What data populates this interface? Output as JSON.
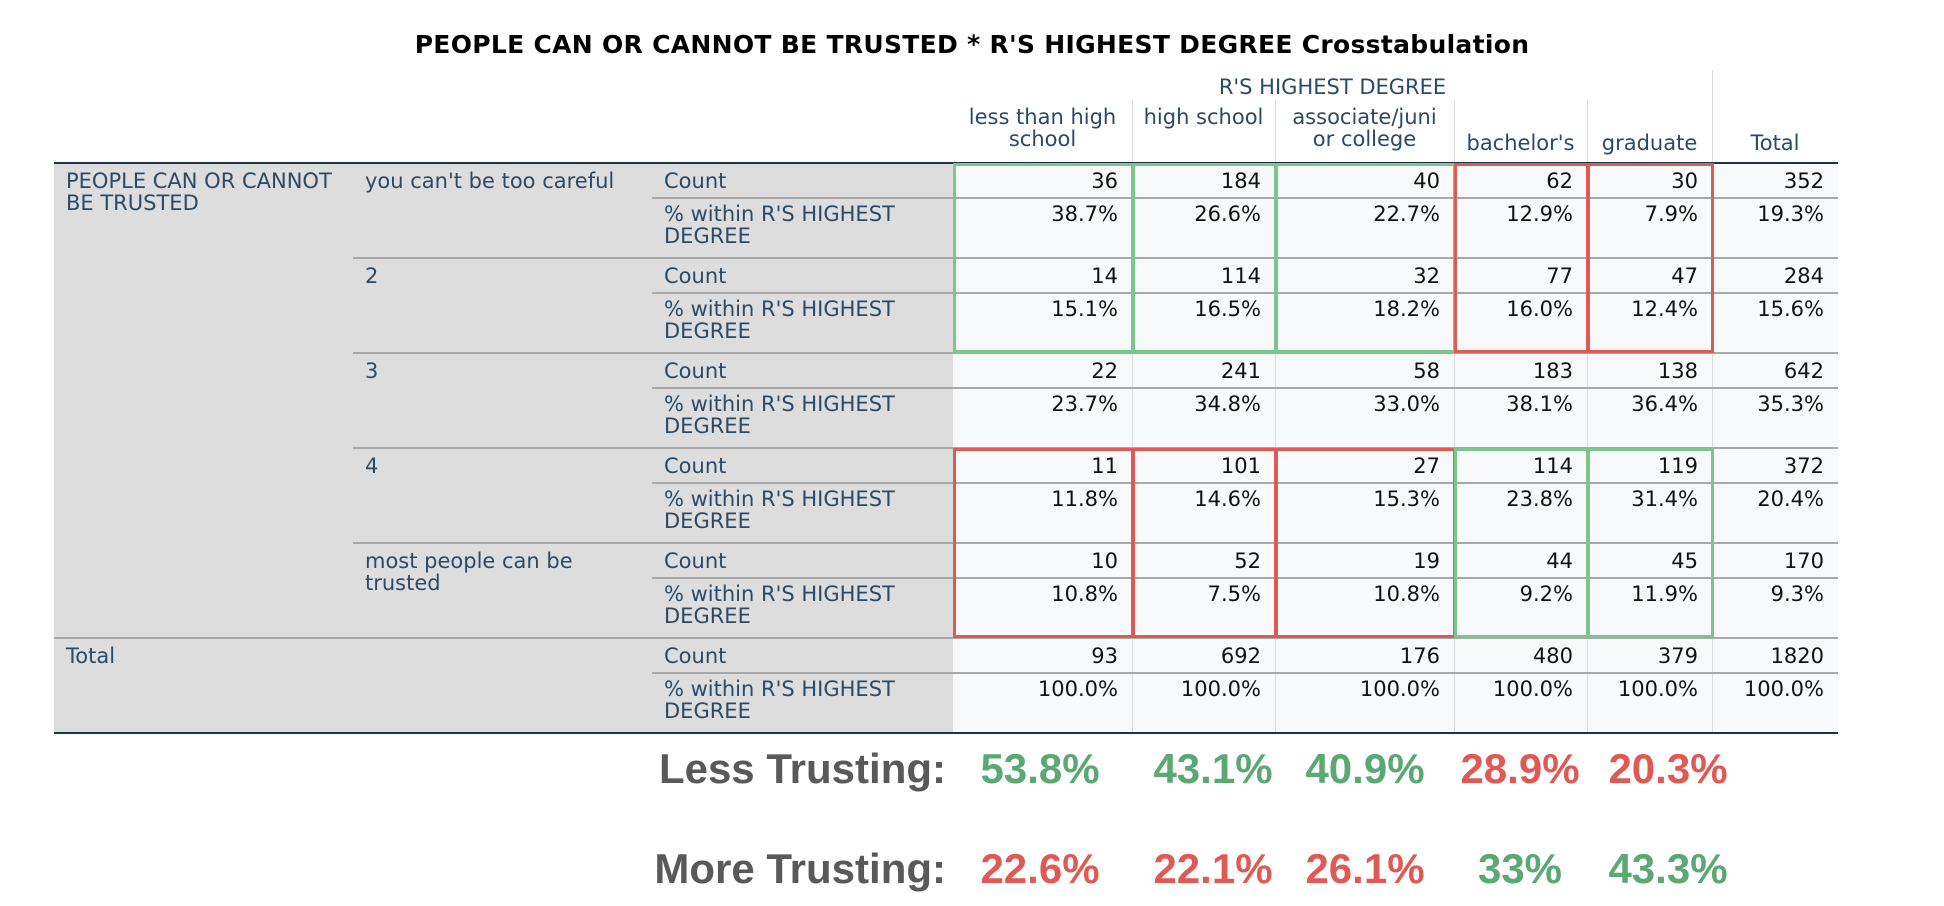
{
  "title": "PEOPLE CAN OR CANNOT BE TRUSTED * R'S HIGHEST DEGREE Crosstabulation",
  "col_group_header": "R'S HIGHEST DEGREE",
  "columns": [
    "less than high school",
    "high school",
    "associate/juni or college",
    "bachelor's",
    "graduate",
    "Total"
  ],
  "row_var": "PEOPLE CAN OR CANNOT BE TRUSTED",
  "total_label": "Total",
  "stat_labels": {
    "count": "Count",
    "pct": "% within R'S HIGHEST DEGREE"
  },
  "rows": [
    {
      "label": "you can't be too careful",
      "count": [
        "36",
        "184",
        "40",
        "62",
        "30",
        "352"
      ],
      "pct": [
        "38.7%",
        "26.6%",
        "22.7%",
        "12.9%",
        "7.9%",
        "19.3%"
      ]
    },
    {
      "label": "2",
      "count": [
        "14",
        "114",
        "32",
        "77",
        "47",
        "284"
      ],
      "pct": [
        "15.1%",
        "16.5%",
        "18.2%",
        "16.0%",
        "12.4%",
        "15.6%"
      ]
    },
    {
      "label": "3",
      "count": [
        "22",
        "241",
        "58",
        "183",
        "138",
        "642"
      ],
      "pct": [
        "23.7%",
        "34.8%",
        "33.0%",
        "38.1%",
        "36.4%",
        "35.3%"
      ]
    },
    {
      "label": "4",
      "count": [
        "11",
        "101",
        "27",
        "114",
        "119",
        "372"
      ],
      "pct": [
        "11.8%",
        "14.6%",
        "15.3%",
        "23.8%",
        "31.4%",
        "20.4%"
      ]
    },
    {
      "label": "most people can be trusted",
      "count": [
        "10",
        "52",
        "19",
        "44",
        "45",
        "170"
      ],
      "pct": [
        "10.8%",
        "7.5%",
        "10.8%",
        "9.2%",
        "11.9%",
        "9.3%"
      ]
    }
  ],
  "total_row": {
    "count": [
      "93",
      "692",
      "176",
      "480",
      "379",
      "1820"
    ],
    "pct": [
      "100.0%",
      "100.0%",
      "100.0%",
      "100.0%",
      "100.0%",
      "100.0%"
    ]
  },
  "summary": [
    {
      "label": "Less Trusting:",
      "values": [
        "53.8%",
        "43.1%",
        "40.9%",
        "28.9%",
        "20.3%"
      ],
      "colors": [
        "green",
        "green",
        "green",
        "red",
        "red"
      ]
    },
    {
      "label": "More Trusting:",
      "values": [
        "22.6%",
        "22.1%",
        "26.1%",
        "33%",
        "43.3%"
      ],
      "colors": [
        "red",
        "red",
        "red",
        "green",
        "green"
      ]
    }
  ],
  "colors": {
    "green": "#5aa873",
    "red": "#e05a55",
    "box_green": "#7bc68c",
    "box_red": "#e05a55"
  }
}
